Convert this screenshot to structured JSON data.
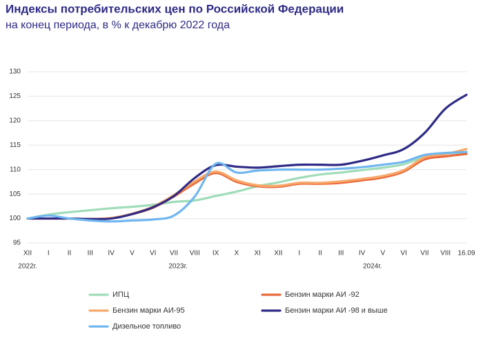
{
  "chart_data": {
    "type": "line",
    "title": "Индексы потребительских цен по Российской Федерации",
    "subtitle": "на конец периода, в % к декабрю 2022 года",
    "categories": [
      "XII",
      "I",
      "II",
      "III",
      "IV",
      "V",
      "VI",
      "VII",
      "VIII",
      "IX",
      "X",
      "XI",
      "XII",
      "I",
      "II",
      "III",
      "IV",
      "V",
      "VI",
      "VII",
      "VIII",
      "16.09"
    ],
    "year_labels": [
      "2022г.",
      "2023г.",
      "2024г."
    ],
    "ylim": [
      95,
      130
    ],
    "yticks": [
      95,
      100,
      105,
      110,
      115,
      120,
      125,
      130
    ],
    "grid": true,
    "series": [
      {
        "name": "ИПЦ",
        "color": "#9fdcb8",
        "values": [
          100,
          100.8,
          101.3,
          101.7,
          102.1,
          102.4,
          102.8,
          103.4,
          103.7,
          104.6,
          105.5,
          106.6,
          107.4,
          108.3,
          109.0,
          109.4,
          109.9,
          110.4,
          111.1,
          112.6,
          113.2,
          113.6
        ]
      },
      {
        "name": "Бензин марки АИ -92",
        "color": "#e8693a",
        "values": [
          100,
          100,
          100,
          99.9,
          100.1,
          100.9,
          102.2,
          104.5,
          107.2,
          109.3,
          107.5,
          106.6,
          106.5,
          107.1,
          107.1,
          107.3,
          107.8,
          108.4,
          109.6,
          112.1,
          112.7,
          113.2
        ]
      },
      {
        "name": "Бензин марки АИ-95",
        "color": "#f7a86a",
        "values": [
          100,
          100,
          100,
          99.9,
          100.1,
          101.0,
          102.4,
          104.8,
          107.6,
          109.6,
          107.8,
          106.8,
          106.7,
          107.3,
          107.3,
          107.6,
          108.1,
          108.7,
          109.9,
          112.5,
          113.2,
          114.2
        ]
      },
      {
        "name": "Бензин марки АИ -98 и  выше",
        "color": "#2e2a86",
        "values": [
          100,
          100,
          100,
          99.9,
          100,
          100.9,
          102.3,
          104.6,
          108.3,
          110.9,
          110.6,
          110.4,
          110.7,
          111.0,
          111.0,
          111.0,
          111.8,
          112.9,
          114.2,
          117.5,
          122.5,
          125.3
        ]
      },
      {
        "name": "Дизельное топливо",
        "color": "#6fb6f0",
        "values": [
          100,
          100.6,
          100,
          99.6,
          99.4,
          99.6,
          99.8,
          100.6,
          104.5,
          111.2,
          109.4,
          109.8,
          110.0,
          110.0,
          110.0,
          110.2,
          110.5,
          111.0,
          111.6,
          113.0,
          113.4,
          113.6
        ]
      }
    ]
  }
}
